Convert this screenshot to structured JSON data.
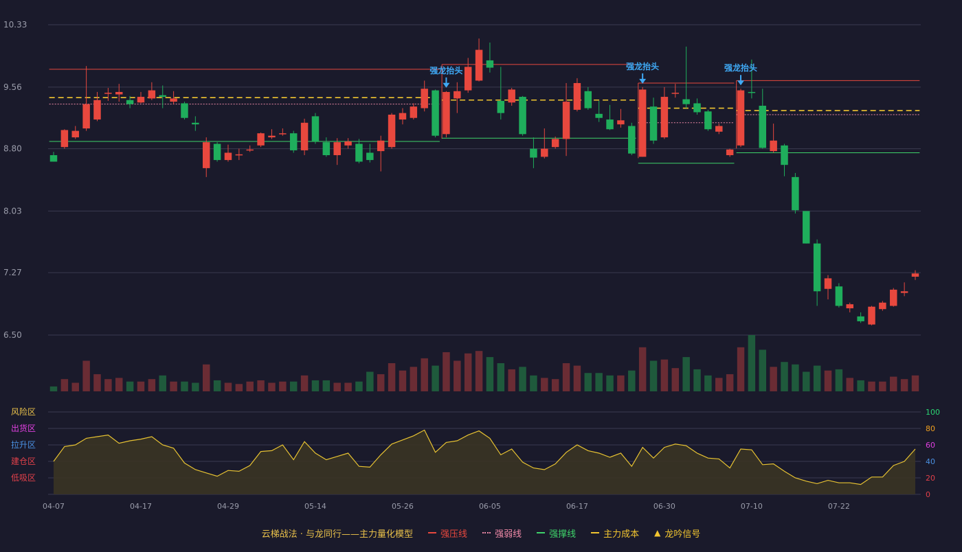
{
  "chart_data": {
    "type": "candlestick",
    "price_axis": {
      "ticks": [
        "10.33",
        "9.56",
        "8.80",
        "8.03",
        "7.27",
        "6.50"
      ],
      "min": 6.5,
      "max": 10.33
    },
    "indicator_axis": {
      "ticks": [
        "100",
        "80",
        "60",
        "40",
        "20",
        "0"
      ],
      "tick_colors": [
        "#2bd673",
        "#f0a020",
        "#e040e0",
        "#4a90e2",
        "#e0404a",
        "#e0404a"
      ],
      "zones": [
        {
          "label": "风险区",
          "color": "#e8c04a"
        },
        {
          "label": "出货区",
          "color": "#e040e0"
        },
        {
          "label": "拉升区",
          "color": "#4a90e2"
        },
        {
          "label": "建仓区",
          "color": "#e0404a"
        },
        {
          "label": "低吸区",
          "color": "#e0404a"
        }
      ]
    },
    "x_ticks": [
      {
        "index": 0,
        "label": "04-07"
      },
      {
        "index": 8,
        "label": "04-17"
      },
      {
        "index": 16,
        "label": "04-29"
      },
      {
        "index": 24,
        "label": "05-14"
      },
      {
        "index": 32,
        "label": "05-26"
      },
      {
        "index": 40,
        "label": "06-05"
      },
      {
        "index": 48,
        "label": "06-17"
      },
      {
        "index": 56,
        "label": "06-30"
      },
      {
        "index": 64,
        "label": "07-10"
      },
      {
        "index": 72,
        "label": "07-22"
      }
    ],
    "candles": [
      [
        8.72,
        8.64,
        8.76,
        8.64
      ],
      [
        8.82,
        9.03,
        9.04,
        8.8
      ],
      [
        8.94,
        9.02,
        9.08,
        8.92
      ],
      [
        9.05,
        9.35,
        9.82,
        9.02
      ],
      [
        9.16,
        9.4,
        9.5,
        9.14
      ],
      [
        9.48,
        9.49,
        9.55,
        9.39
      ],
      [
        9.47,
        9.5,
        9.6,
        9.38
      ],
      [
        9.4,
        9.35,
        9.45,
        9.3
      ],
      [
        9.37,
        9.44,
        9.5,
        9.36
      ],
      [
        9.42,
        9.52,
        9.62,
        9.4
      ],
      [
        9.46,
        9.44,
        9.58,
        9.3
      ],
      [
        9.38,
        9.42,
        9.51,
        9.35
      ],
      [
        9.36,
        9.18,
        9.38,
        9.16
      ],
      [
        9.12,
        9.1,
        9.2,
        9.02
      ],
      [
        8.56,
        8.88,
        8.94,
        8.45
      ],
      [
        8.86,
        8.66,
        8.88,
        8.64
      ],
      [
        8.66,
        8.75,
        8.85,
        8.64
      ],
      [
        8.72,
        8.73,
        8.8,
        8.66
      ],
      [
        8.78,
        8.79,
        8.84,
        8.76
      ],
      [
        8.84,
        8.99,
        9.0,
        8.82
      ],
      [
        8.94,
        8.96,
        9.04,
        8.92
      ],
      [
        8.98,
        8.99,
        9.05,
        8.96
      ],
      [
        8.99,
        8.78,
        9.02,
        8.75
      ],
      [
        8.78,
        9.12,
        9.17,
        8.72
      ],
      [
        9.2,
        8.89,
        9.24,
        8.86
      ],
      [
        8.88,
        8.72,
        8.94,
        8.7
      ],
      [
        8.72,
        8.88,
        8.93,
        8.6
      ],
      [
        8.84,
        8.89,
        8.93,
        8.8
      ],
      [
        8.86,
        8.64,
        8.92,
        8.62
      ],
      [
        8.75,
        8.66,
        8.86,
        8.63
      ],
      [
        8.77,
        8.9,
        8.96,
        8.52
      ],
      [
        8.82,
        9.22,
        9.24,
        8.8
      ],
      [
        9.16,
        9.24,
        9.3,
        9.1
      ],
      [
        9.18,
        9.32,
        9.36,
        9.16
      ],
      [
        9.3,
        9.54,
        9.64,
        9.26
      ],
      [
        9.52,
        8.96,
        9.53,
        8.94
      ],
      [
        8.98,
        9.5,
        9.51,
        8.94
      ],
      [
        9.42,
        9.51,
        9.62,
        9.24
      ],
      [
        9.52,
        9.81,
        9.92,
        9.49
      ],
      [
        9.64,
        10.02,
        10.16,
        9.63
      ],
      [
        9.89,
        9.8,
        10.11,
        9.74
      ],
      [
        9.39,
        9.24,
        9.81,
        9.16
      ],
      [
        9.37,
        9.53,
        9.55,
        9.33
      ],
      [
        9.44,
        8.98,
        9.45,
        8.96
      ],
      [
        8.8,
        8.69,
        8.94,
        8.56
      ],
      [
        8.7,
        8.8,
        9.05,
        8.68
      ],
      [
        8.82,
        8.92,
        8.95,
        8.8
      ],
      [
        8.92,
        9.38,
        9.61,
        8.71
      ],
      [
        9.28,
        9.61,
        9.67,
        9.26
      ],
      [
        9.51,
        9.3,
        9.56,
        9.28
      ],
      [
        9.23,
        9.18,
        9.39,
        9.13
      ],
      [
        9.16,
        9.04,
        9.34,
        9.03
      ],
      [
        9.1,
        9.15,
        9.29,
        9.06
      ],
      [
        9.08,
        8.74,
        9.12,
        8.72
      ],
      [
        8.7,
        9.53,
        9.56,
        8.7
      ],
      [
        9.32,
        8.9,
        9.43,
        8.86
      ],
      [
        8.94,
        9.44,
        9.56,
        8.92
      ],
      [
        9.48,
        9.49,
        9.6,
        9.43
      ],
      [
        9.41,
        9.35,
        10.06,
        9.3
      ],
      [
        9.36,
        9.25,
        9.42,
        9.22
      ],
      [
        9.26,
        9.04,
        9.28,
        9.02
      ],
      [
        9.01,
        9.08,
        9.11,
        8.98
      ],
      [
        8.72,
        8.79,
        8.8,
        8.7
      ],
      [
        8.84,
        9.52,
        9.54,
        8.82
      ],
      [
        9.5,
        9.49,
        9.9,
        9.42
      ],
      [
        9.33,
        8.81,
        9.54,
        8.8
      ],
      [
        8.77,
        8.9,
        9.11,
        8.75
      ],
      [
        8.84,
        8.6,
        8.86,
        8.46
      ],
      [
        8.45,
        8.04,
        8.5,
        8.0
      ],
      [
        8.03,
        7.63,
        8.03,
        7.63
      ],
      [
        7.63,
        7.04,
        7.68,
        6.86
      ],
      [
        7.07,
        7.2,
        7.24,
        6.94
      ],
      [
        7.1,
        6.86,
        7.14,
        6.84
      ],
      [
        6.83,
        6.88,
        6.9,
        6.78
      ],
      [
        6.73,
        6.67,
        6.78,
        6.65
      ],
      [
        6.63,
        6.85,
        6.86,
        6.62
      ],
      [
        6.82,
        6.9,
        6.92,
        6.8
      ],
      [
        6.86,
        7.06,
        7.08,
        6.85
      ],
      [
        7.02,
        7.04,
        7.15,
        6.98
      ],
      [
        7.22,
        7.26,
        7.3,
        7.18
      ]
    ],
    "volume": [
      4,
      10,
      7,
      25,
      14,
      10,
      11,
      8,
      8,
      10,
      13,
      8,
      8,
      7,
      22,
      9,
      7,
      6,
      8,
      9,
      7,
      8,
      8,
      13,
      9,
      9,
      7,
      7,
      8,
      16,
      14,
      23,
      17,
      20,
      27,
      21,
      32,
      25,
      31,
      33,
      28,
      23,
      18,
      20,
      13,
      11,
      10,
      23,
      21,
      15,
      15,
      13,
      13,
      17,
      36,
      25,
      26,
      19,
      28,
      18,
      13,
      11,
      14,
      36,
      46,
      34,
      20,
      24,
      22,
      16,
      21,
      17,
      18,
      11,
      9,
      8,
      8,
      12,
      10,
      13
    ],
    "volume_max": 46,
    "indicator": [
      40,
      58,
      60,
      68,
      70,
      72,
      62,
      65,
      67,
      70,
      60,
      56,
      38,
      30,
      26,
      22,
      29,
      28,
      35,
      52,
      53,
      60,
      42,
      64,
      50,
      42,
      46,
      50,
      34,
      33,
      48,
      61,
      66,
      71,
      78,
      51,
      63,
      65,
      72,
      77,
      68,
      48,
      55,
      39,
      32,
      30,
      37,
      51,
      60,
      53,
      50,
      45,
      50,
      34,
      57,
      44,
      57,
      61,
      59,
      50,
      44,
      43,
      32,
      55,
      54,
      36,
      37,
      28,
      20,
      16,
      13,
      17,
      14,
      14,
      12,
      21,
      21,
      35,
      40,
      55
    ],
    "signals": [
      {
        "index": 36,
        "label": "强龙抬头"
      },
      {
        "index": 54,
        "label": "强龙抬头"
      },
      {
        "index": 63,
        "label": "强龙抬头"
      }
    ],
    "segments": [
      {
        "kind": "strong_pressure",
        "start": 0,
        "end": 35,
        "value": 9.78
      },
      {
        "kind": "strong_pressure",
        "start": 36,
        "end": 53,
        "value": 9.84
      },
      {
        "kind": "strong_pressure",
        "start": 54,
        "end": 62,
        "value": 9.61
      },
      {
        "kind": "strong_pressure",
        "start": 63,
        "end": 79,
        "value": 9.64
      },
      {
        "kind": "weak_line",
        "start": 0,
        "end": 35,
        "value": 9.35
      },
      {
        "kind": "weak_line",
        "start": 54,
        "end": 62,
        "value": 9.12
      },
      {
        "kind": "weak_line",
        "start": 63,
        "end": 79,
        "value": 9.22
      },
      {
        "kind": "support",
        "start": 0,
        "end": 35,
        "value": 8.89
      },
      {
        "kind": "support",
        "start": 36,
        "end": 53,
        "value": 8.93
      },
      {
        "kind": "support",
        "start": 54,
        "end": 62,
        "value": 8.62
      },
      {
        "kind": "support",
        "start": 63,
        "end": 79,
        "value": 8.75
      },
      {
        "kind": "main_cost",
        "start": 0,
        "end": 35,
        "value": 9.43
      },
      {
        "kind": "main_cost",
        "start": 36,
        "end": 53,
        "value": 9.4
      },
      {
        "kind": "main_cost",
        "start": 54,
        "end": 62,
        "value": 9.3
      },
      {
        "kind": "main_cost",
        "start": 63,
        "end": 79,
        "value": 9.27
      }
    ]
  },
  "legend": {
    "title": "云梯战法 · 与龙同行——主力量化模型",
    "items": [
      {
        "label": "强压线",
        "color": "#e8483e",
        "style": "solid",
        "kind": "strong_pressure"
      },
      {
        "label": "强弱线",
        "color": "#f08aa8",
        "style": "dotted",
        "kind": "weak_line"
      },
      {
        "label": "强撑线",
        "color": "#3ed36a",
        "style": "solid",
        "kind": "support"
      },
      {
        "label": "主力成本",
        "color": "#f2c530",
        "style": "dashed",
        "kind": "main_cost"
      },
      {
        "label": "龙吟信号",
        "color": "#f2c530",
        "style": "triangle",
        "kind": "signal"
      }
    ]
  },
  "colors": {
    "up": "#e8483e",
    "down": "#1fae5c",
    "signal": "#3fa9f5",
    "indicator_line": "#e8c332",
    "indicator_fill": "#3a3424",
    "grid": "#3a3b50",
    "axis_text": "#9a9caa"
  }
}
